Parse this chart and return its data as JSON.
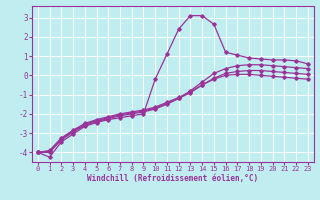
{
  "xlabel": "Windchill (Refroidissement éolien,°C)",
  "xlim": [
    -0.5,
    23.5
  ],
  "ylim": [
    -4.5,
    3.6
  ],
  "yticks": [
    -4,
    -3,
    -2,
    -1,
    0,
    1,
    2,
    3
  ],
  "xticks": [
    0,
    1,
    2,
    3,
    4,
    5,
    6,
    7,
    8,
    9,
    10,
    11,
    12,
    13,
    14,
    15,
    16,
    17,
    18,
    19,
    20,
    21,
    22,
    23
  ],
  "bg_color": "#c0eef0",
  "line_color": "#993399",
  "grid_color": "#ffffff",
  "series": [
    {
      "x": [
        0,
        1,
        2,
        3,
        4,
        5,
        6,
        7,
        8,
        9,
        10,
        11,
        12,
        13,
        14,
        15,
        16,
        17,
        18,
        19,
        20,
        21,
        22,
        23
      ],
      "y": [
        -4.0,
        -4.25,
        -3.45,
        -3.05,
        -2.65,
        -2.45,
        -2.3,
        -2.2,
        -2.1,
        -2.0,
        -0.2,
        1.1,
        2.4,
        3.1,
        3.1,
        2.65,
        1.2,
        1.05,
        0.9,
        0.85,
        0.8,
        0.8,
        0.75,
        0.6
      ]
    },
    {
      "x": [
        0,
        1,
        2,
        3,
        4,
        5,
        6,
        7,
        8,
        9,
        10,
        11,
        12,
        13,
        14,
        15,
        16,
        17,
        18,
        19,
        20,
        21,
        22,
        23
      ],
      "y": [
        -4.0,
        -4.0,
        -3.35,
        -2.95,
        -2.6,
        -2.4,
        -2.25,
        -2.1,
        -2.0,
        -1.9,
        -1.75,
        -1.5,
        -1.2,
        -0.8,
        -0.35,
        0.1,
        0.35,
        0.5,
        0.55,
        0.55,
        0.5,
        0.45,
        0.4,
        0.35
      ]
    },
    {
      "x": [
        0,
        1,
        2,
        3,
        4,
        5,
        6,
        7,
        8,
        9,
        10,
        11,
        12,
        13,
        14,
        15,
        16,
        17,
        18,
        19,
        20,
        21,
        22,
        23
      ],
      "y": [
        -4.0,
        -3.95,
        -3.3,
        -2.9,
        -2.55,
        -2.35,
        -2.2,
        -2.05,
        -1.95,
        -1.85,
        -1.7,
        -1.45,
        -1.2,
        -0.9,
        -0.5,
        -0.15,
        0.1,
        0.2,
        0.25,
        0.25,
        0.2,
        0.15,
        0.1,
        0.05
      ]
    },
    {
      "x": [
        0,
        1,
        2,
        3,
        4,
        5,
        6,
        7,
        8,
        9,
        10,
        11,
        12,
        13,
        14,
        15,
        16,
        17,
        18,
        19,
        20,
        21,
        22,
        23
      ],
      "y": [
        -4.0,
        -3.9,
        -3.25,
        -2.85,
        -2.5,
        -2.3,
        -2.15,
        -2.0,
        -1.9,
        -1.8,
        -1.65,
        -1.4,
        -1.15,
        -0.85,
        -0.5,
        -0.2,
        0.0,
        0.05,
        0.05,
        0.0,
        -0.05,
        -0.1,
        -0.15,
        -0.2
      ]
    }
  ]
}
